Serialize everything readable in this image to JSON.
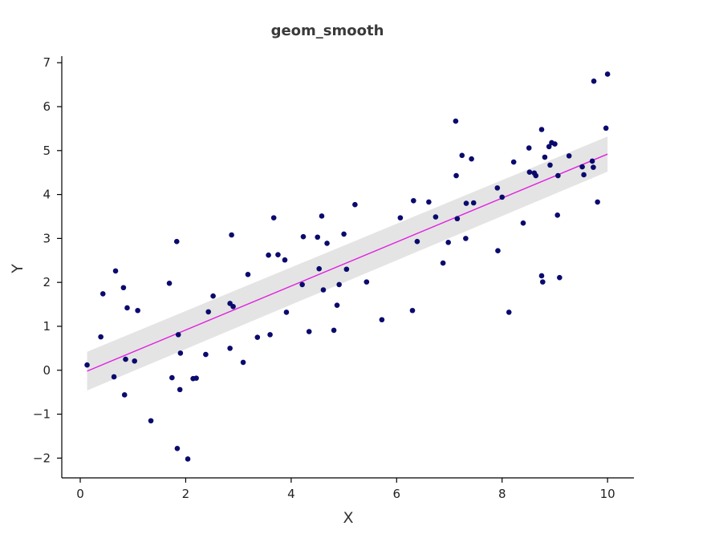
{
  "chart_data": {
    "type": "scatter",
    "title": "geom_smooth",
    "xlabel": "X",
    "ylabel": "Y",
    "xlim": [
      -0.35,
      10.5
    ],
    "ylim": [
      -2.45,
      7.15
    ],
    "xticks": [
      0,
      2,
      4,
      6,
      8,
      10
    ],
    "yticks": [
      -2,
      -1,
      0,
      1,
      2,
      3,
      4,
      5,
      6,
      7
    ],
    "grid": false,
    "legend": "none",
    "colors": {
      "points": "#0a0a6e",
      "fit_line": "#e020e0",
      "confidence_band": "#e4e4e4"
    },
    "fit": {
      "x": [
        0.13,
        10.0
      ],
      "y": [
        -0.02,
        4.92
      ],
      "ci_upper": [
        0.42,
        5.32
      ],
      "ci_lower": [
        -0.46,
        4.52
      ]
    },
    "points": [
      [
        0.13,
        0.12
      ],
      [
        0.39,
        0.76
      ],
      [
        0.43,
        1.74
      ],
      [
        0.64,
        -0.15
      ],
      [
        0.67,
        2.26
      ],
      [
        0.82,
        1.88
      ],
      [
        0.84,
        -0.56
      ],
      [
        0.86,
        0.25
      ],
      [
        0.89,
        1.42
      ],
      [
        1.03,
        0.21
      ],
      [
        1.09,
        1.36
      ],
      [
        1.34,
        -1.15
      ],
      [
        1.69,
        1.98
      ],
      [
        1.74,
        -0.17
      ],
      [
        1.83,
        2.93
      ],
      [
        1.84,
        -1.78
      ],
      [
        1.86,
        0.81
      ],
      [
        1.89,
        -0.44
      ],
      [
        1.9,
        0.39
      ],
      [
        2.04,
        -2.02
      ],
      [
        2.14,
        -0.19
      ],
      [
        2.2,
        -0.18
      ],
      [
        2.38,
        0.36
      ],
      [
        2.43,
        1.33
      ],
      [
        2.52,
        1.69
      ],
      [
        2.84,
        1.52
      ],
      [
        2.84,
        0.5
      ],
      [
        2.87,
        3.08
      ],
      [
        2.9,
        1.45
      ],
      [
        3.09,
        0.18
      ],
      [
        3.18,
        2.18
      ],
      [
        3.36,
        0.75
      ],
      [
        3.57,
        2.62
      ],
      [
        3.6,
        0.81
      ],
      [
        3.67,
        3.47
      ],
      [
        3.75,
        2.63
      ],
      [
        3.88,
        2.51
      ],
      [
        3.91,
        1.32
      ],
      [
        4.21,
        1.95
      ],
      [
        4.23,
        3.04
      ],
      [
        4.34,
        0.88
      ],
      [
        4.5,
        3.03
      ],
      [
        4.53,
        2.31
      ],
      [
        4.58,
        3.51
      ],
      [
        4.61,
        1.83
      ],
      [
        4.68,
        2.89
      ],
      [
        4.81,
        0.91
      ],
      [
        4.87,
        1.48
      ],
      [
        4.91,
        1.95
      ],
      [
        5.0,
        3.1
      ],
      [
        5.05,
        2.3
      ],
      [
        5.21,
        3.77
      ],
      [
        5.43,
        2.01
      ],
      [
        5.72,
        1.15
      ],
      [
        6.07,
        3.47
      ],
      [
        6.3,
        1.36
      ],
      [
        6.32,
        3.86
      ],
      [
        6.39,
        2.93
      ],
      [
        6.61,
        3.83
      ],
      [
        6.74,
        3.49
      ],
      [
        6.88,
        2.44
      ],
      [
        6.98,
        2.91
      ],
      [
        7.12,
        5.67
      ],
      [
        7.13,
        4.43
      ],
      [
        7.15,
        3.45
      ],
      [
        7.24,
        4.89
      ],
      [
        7.31,
        3.0
      ],
      [
        7.32,
        3.8
      ],
      [
        7.42,
        4.81
      ],
      [
        7.46,
        3.81
      ],
      [
        7.91,
        4.15
      ],
      [
        7.92,
        2.72
      ],
      [
        8.0,
        3.94
      ],
      [
        8.13,
        1.32
      ],
      [
        8.22,
        4.74
      ],
      [
        8.4,
        3.35
      ],
      [
        8.51,
        5.06
      ],
      [
        8.52,
        4.51
      ],
      [
        8.61,
        4.49
      ],
      [
        8.64,
        4.43
      ],
      [
        8.75,
        5.48
      ],
      [
        8.75,
        2.15
      ],
      [
        8.77,
        2.01
      ],
      [
        8.81,
        4.85
      ],
      [
        8.89,
        5.09
      ],
      [
        8.91,
        4.67
      ],
      [
        8.94,
        5.18
      ],
      [
        9.0,
        5.15
      ],
      [
        9.05,
        3.53
      ],
      [
        9.06,
        4.43
      ],
      [
        9.09,
        2.11
      ],
      [
        9.27,
        4.88
      ],
      [
        9.52,
        4.63
      ],
      [
        9.55,
        4.45
      ],
      [
        9.71,
        4.76
      ],
      [
        9.73,
        4.62
      ],
      [
        9.74,
        6.58
      ],
      [
        9.81,
        3.83
      ],
      [
        9.97,
        5.51
      ],
      [
        10.0,
        6.74
      ]
    ]
  }
}
